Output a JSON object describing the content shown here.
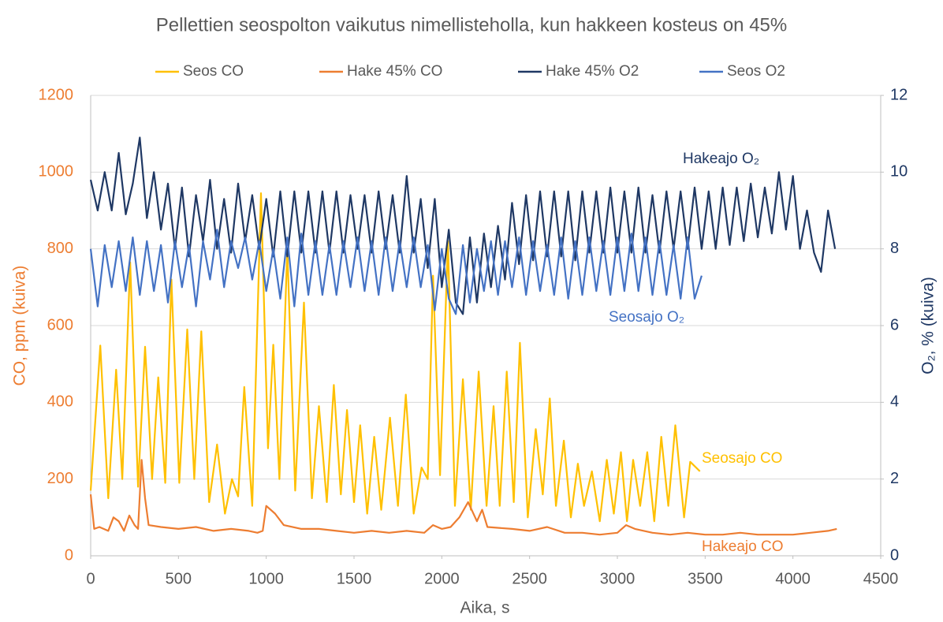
{
  "chart_data": {
    "type": "line",
    "title": "Pellettien seospolton vaikutus nimellisteholla, kun hakkeen kosteus on 45%",
    "x_label": "Aika, s",
    "y_label": "CO, ppm (kuiva)",
    "y2_label": "O₂, % (kuiva)",
    "xlim": [
      0,
      4500
    ],
    "xticks": [
      0,
      500,
      1000,
      1500,
      2000,
      2500,
      3000,
      3500,
      4000,
      4500
    ],
    "ylim": [
      0,
      1200
    ],
    "yticks": [
      0,
      200,
      400,
      600,
      800,
      1000,
      1200
    ],
    "y2lim": [
      0,
      12
    ],
    "y2ticks": [
      0,
      2,
      4,
      6,
      8,
      10,
      12
    ],
    "grid": true,
    "legend": "top",
    "series": [
      {
        "name": "Seos CO",
        "color": "#FFC000",
        "x": [
          0,
          55,
          100,
          145,
          180,
          225,
          270,
          310,
          350,
          385,
          425,
          460,
          505,
          550,
          590,
          630,
          675,
          720,
          765,
          805,
          840,
          875,
          920,
          970,
          1010,
          1040,
          1075,
          1120,
          1165,
          1215,
          1260,
          1300,
          1345,
          1385,
          1425,
          1460,
          1500,
          1535,
          1575,
          1615,
          1655,
          1705,
          1750,
          1795,
          1840,
          1885,
          1920,
          1950,
          1990,
          2035,
          2075,
          2120,
          2165,
          2210,
          2255,
          2295,
          2330,
          2370,
          2410,
          2445,
          2490,
          2535,
          2575,
          2615,
          2650,
          2695,
          2735,
          2775,
          2810,
          2855,
          2900,
          2940,
          2980,
          3020,
          3055,
          3090,
          3130,
          3170,
          3210,
          3250,
          3290,
          3330,
          3380,
          3415,
          3470
        ],
        "values": [
          170,
          548,
          150,
          485,
          200,
          765,
          180,
          545,
          200,
          465,
          190,
          720,
          190,
          590,
          200,
          585,
          140,
          290,
          110,
          200,
          155,
          440,
          130,
          945,
          280,
          550,
          200,
          800,
          170,
          660,
          150,
          390,
          140,
          445,
          160,
          380,
          140,
          340,
          110,
          310,
          120,
          360,
          130,
          420,
          110,
          230,
          200,
          730,
          210,
          820,
          130,
          460,
          120,
          480,
          130,
          390,
          130,
          480,
          140,
          555,
          100,
          330,
          160,
          410,
          130,
          300,
          100,
          240,
          130,
          220,
          90,
          250,
          110,
          270,
          90,
          250,
          130,
          270,
          90,
          310,
          130,
          340,
          100,
          245,
          220
        ]
      },
      {
        "name": "Hake 45% CO",
        "color": "#ED7D31",
        "x": [
          0,
          20,
          50,
          100,
          130,
          160,
          190,
          220,
          250,
          270,
          290,
          310,
          330,
          400,
          500,
          600,
          700,
          800,
          900,
          950,
          980,
          1000,
          1050,
          1100,
          1200,
          1300,
          1400,
          1500,
          1600,
          1700,
          1800,
          1900,
          1950,
          2000,
          2050,
          2100,
          2150,
          2200,
          2230,
          2260,
          2400,
          2500,
          2600,
          2700,
          2800,
          2900,
          3000,
          3050,
          3100,
          3200,
          3300,
          3400,
          3500,
          3600,
          3700,
          3800,
          3900,
          4000,
          4100,
          4200,
          4250
        ],
        "values": [
          160,
          70,
          75,
          65,
          100,
          90,
          65,
          105,
          80,
          70,
          250,
          150,
          80,
          75,
          70,
          75,
          65,
          70,
          65,
          60,
          65,
          130,
          110,
          80,
          70,
          70,
          65,
          60,
          65,
          60,
          65,
          60,
          80,
          70,
          75,
          100,
          140,
          90,
          120,
          75,
          70,
          65,
          75,
          60,
          60,
          55,
          60,
          80,
          70,
          60,
          55,
          60,
          55,
          55,
          60,
          55,
          55,
          55,
          60,
          65,
          70
        ]
      },
      {
        "name": "Hake 45% O2",
        "color": "#1F3864",
        "axis": "y2",
        "x": [
          0,
          40,
          80,
          120,
          160,
          200,
          240,
          280,
          320,
          360,
          400,
          440,
          480,
          520,
          560,
          600,
          640,
          680,
          720,
          760,
          800,
          840,
          880,
          920,
          960,
          1000,
          1040,
          1080,
          1120,
          1160,
          1200,
          1240,
          1280,
          1320,
          1360,
          1400,
          1440,
          1480,
          1520,
          1560,
          1600,
          1640,
          1680,
          1720,
          1760,
          1800,
          1840,
          1880,
          1920,
          1960,
          2000,
          2040,
          2080,
          2120,
          2160,
          2200,
          2240,
          2280,
          2320,
          2360,
          2400,
          2440,
          2480,
          2520,
          2560,
          2600,
          2640,
          2680,
          2720,
          2760,
          2800,
          2840,
          2880,
          2920,
          2960,
          3000,
          3040,
          3080,
          3120,
          3160,
          3200,
          3240,
          3280,
          3320,
          3360,
          3400,
          3440,
          3480,
          3520,
          3560,
          3600,
          3640,
          3680,
          3720,
          3760,
          3800,
          3840,
          3880,
          3920,
          3960,
          4000,
          4040,
          4080,
          4120,
          4160,
          4200,
          4240
        ],
        "values": [
          9.8,
          9.0,
          10.0,
          9.0,
          10.5,
          8.9,
          9.7,
          10.9,
          8.8,
          10.0,
          8.5,
          9.7,
          8.0,
          9.6,
          7.8,
          9.4,
          8.2,
          9.8,
          8.0,
          9.3,
          7.9,
          9.7,
          8.2,
          9.4,
          8.0,
          9.3,
          7.8,
          9.5,
          7.8,
          9.5,
          7.9,
          9.5,
          7.9,
          9.5,
          7.9,
          9.5,
          7.9,
          9.4,
          8.0,
          9.4,
          7.9,
          9.5,
          8.0,
          9.4,
          7.9,
          9.9,
          7.9,
          9.3,
          7.5,
          9.3,
          7.0,
          8.5,
          6.6,
          6.3,
          8.3,
          6.6,
          8.4,
          7.0,
          8.6,
          7.2,
          9.2,
          7.6,
          9.4,
          7.7,
          9.5,
          7.8,
          9.5,
          7.8,
          9.5,
          7.7,
          9.5,
          7.9,
          9.5,
          7.9,
          9.6,
          7.9,
          9.5,
          7.9,
          9.6,
          7.9,
          9.4,
          7.9,
          9.5,
          8.0,
          9.5,
          8.0,
          9.6,
          8.0,
          9.5,
          8.0,
          9.6,
          8.1,
          9.6,
          8.2,
          9.7,
          8.3,
          9.6,
          8.4,
          10.0,
          8.5,
          9.9,
          8.0,
          9.0,
          7.9,
          7.4,
          9.0,
          8.0
        ]
      },
      {
        "name": "Seos O2",
        "color": "#4472C4",
        "axis": "y2",
        "x": [
          0,
          40,
          80,
          120,
          160,
          200,
          240,
          280,
          320,
          360,
          400,
          440,
          480,
          520,
          560,
          600,
          640,
          680,
          720,
          760,
          800,
          840,
          880,
          920,
          960,
          1000,
          1040,
          1080,
          1120,
          1160,
          1200,
          1240,
          1280,
          1320,
          1360,
          1400,
          1440,
          1480,
          1520,
          1560,
          1600,
          1640,
          1680,
          1720,
          1760,
          1800,
          1840,
          1880,
          1920,
          1960,
          2000,
          2040,
          2080,
          2120,
          2160,
          2200,
          2240,
          2280,
          2320,
          2360,
          2400,
          2440,
          2480,
          2520,
          2560,
          2600,
          2640,
          2680,
          2720,
          2760,
          2800,
          2840,
          2880,
          2920,
          2960,
          3000,
          3040,
          3080,
          3120,
          3160,
          3200,
          3240,
          3280,
          3320,
          3360,
          3400,
          3440,
          3480
        ],
        "values": [
          8.0,
          6.5,
          8.1,
          7.0,
          8.2,
          6.9,
          8.3,
          6.8,
          8.2,
          6.9,
          8.1,
          6.6,
          8.2,
          7.0,
          8.1,
          6.5,
          8.2,
          7.2,
          8.5,
          7.0,
          8.2,
          7.5,
          8.3,
          7.2,
          8.2,
          6.9,
          8.0,
          6.7,
          8.3,
          6.5,
          8.4,
          6.8,
          8.2,
          6.8,
          8.1,
          6.8,
          8.2,
          7.0,
          8.3,
          6.9,
          8.2,
          6.8,
          8.3,
          6.9,
          8.2,
          7.0,
          8.3,
          7.0,
          8.1,
          6.4,
          8.0,
          6.7,
          6.3,
          8.1,
          6.6,
          8.0,
          6.9,
          8.2,
          6.8,
          8.2,
          7.0,
          8.3,
          6.8,
          8.2,
          6.9,
          8.1,
          6.8,
          8.3,
          6.7,
          8.2,
          6.8,
          8.3,
          6.9,
          8.2,
          6.8,
          8.3,
          6.9,
          8.4,
          6.9,
          8.3,
          6.8,
          8.2,
          6.8,
          8.1,
          6.7,
          8.3,
          6.7,
          7.3
        ]
      }
    ],
    "annotations": [
      "Hakeajo O₂",
      "Seosajo O₂",
      "Seosajo CO",
      "Hakeajo CO"
    ]
  }
}
